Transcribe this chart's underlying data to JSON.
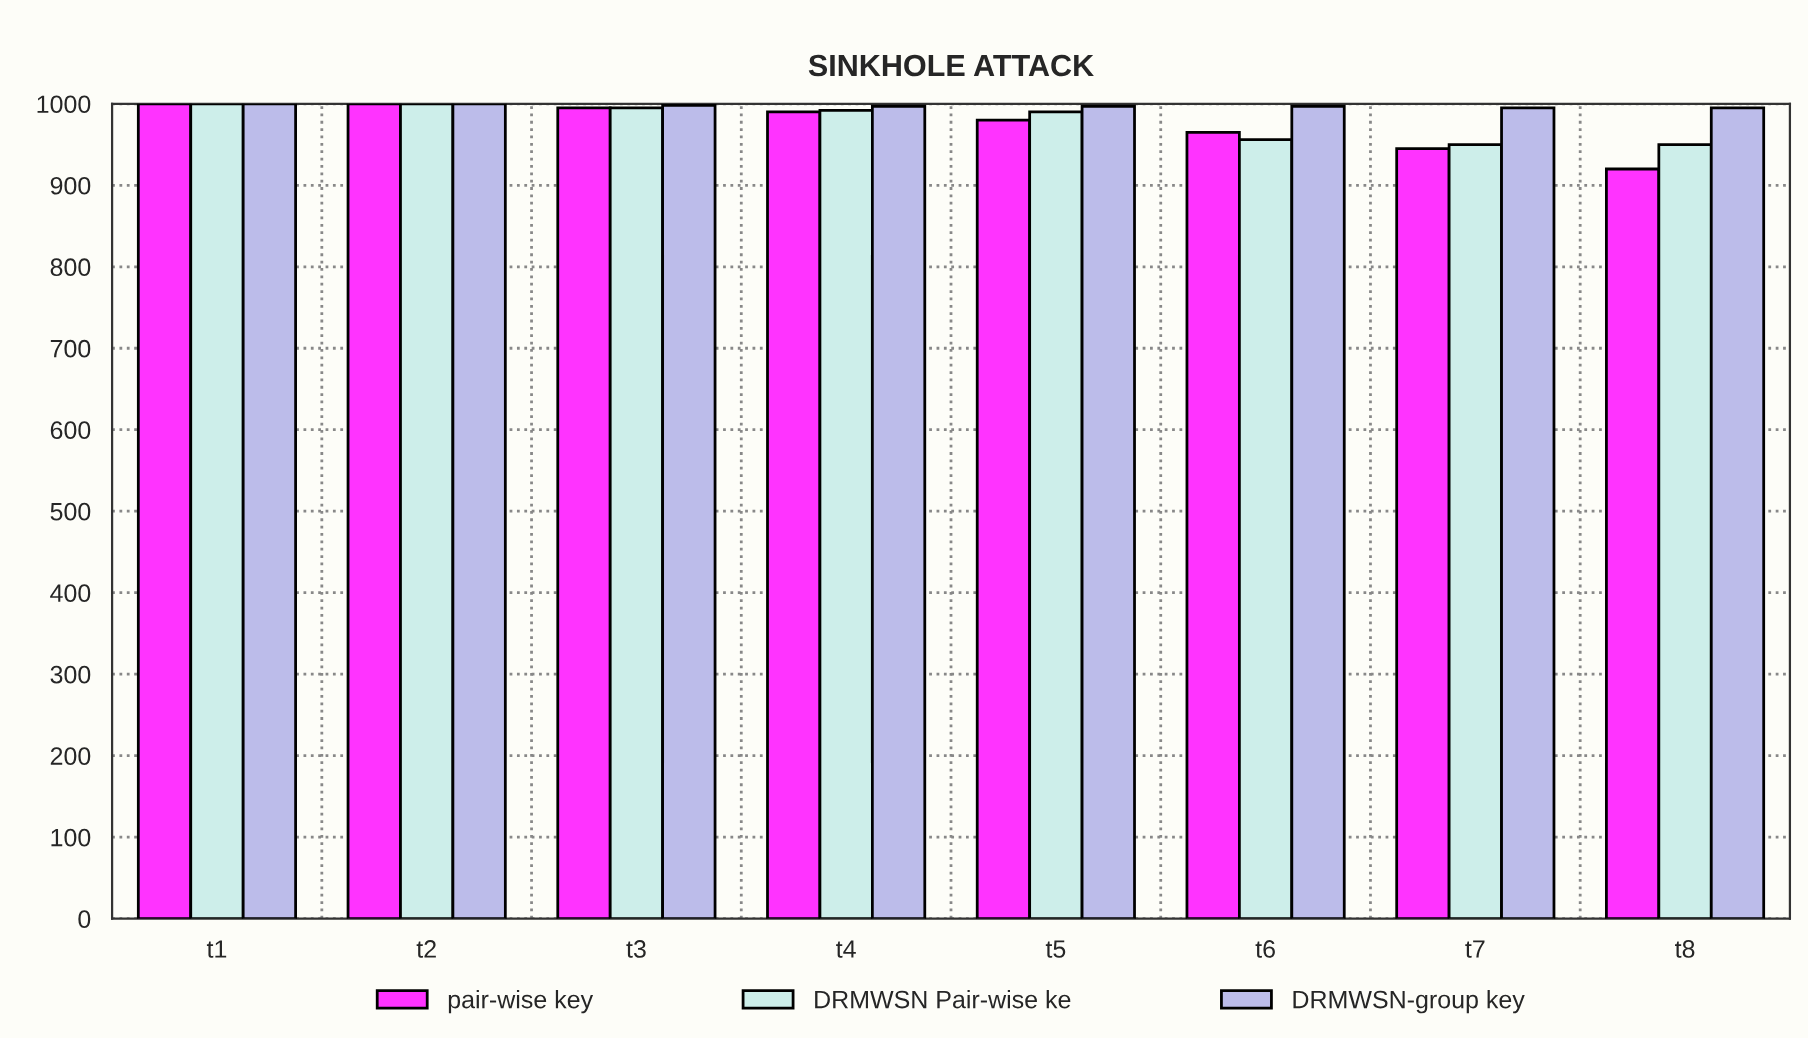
{
  "chart_data": {
    "type": "bar",
    "title": "SINKHOLE ATTACK",
    "categories": [
      "t1",
      "t2",
      "t3",
      "t4",
      "t5",
      "t6",
      "t7",
      "t8"
    ],
    "series": [
      {
        "name": "pair-wise key",
        "color": "#ff33ff",
        "values": [
          1000,
          1000,
          995,
          990,
          980,
          965,
          945,
          920
        ]
      },
      {
        "name": "DRMWSN Pair-wise ke",
        "color": "#cdeeea",
        "values": [
          1000,
          1000,
          995,
          992,
          990,
          956,
          950,
          950
        ]
      },
      {
        "name": "DRMWSN-group key",
        "color": "#bcbcea",
        "values": [
          1000,
          1000,
          998,
          997,
          997,
          997,
          995,
          995
        ]
      }
    ],
    "ylim": [
      0,
      1000
    ],
    "yticks": [
      0,
      100,
      200,
      300,
      400,
      500,
      600,
      700,
      800,
      900,
      1000
    ],
    "grid": true,
    "legend": "bottom"
  }
}
